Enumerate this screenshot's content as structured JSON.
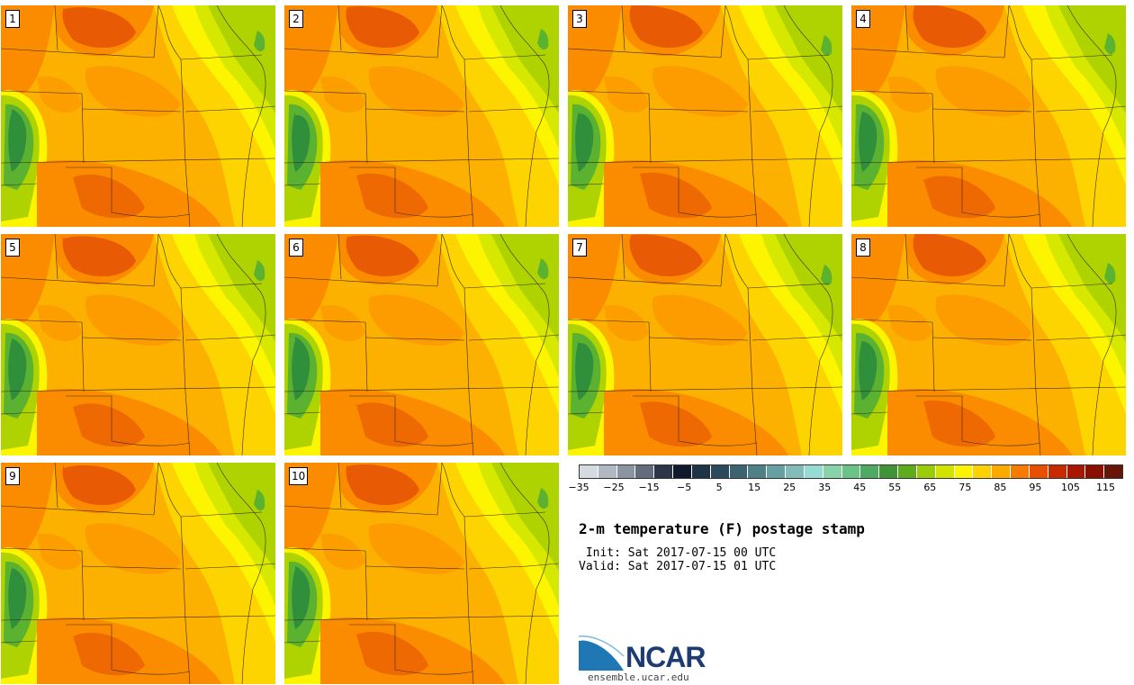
{
  "figure": {
    "title": "2-m temperature (F) postage stamp",
    "init_line": " Init: Sat 2017-07-15 00 UTC",
    "valid_line": "Valid: Sat 2017-07-15 01 UTC",
    "logo_text": "NCAR",
    "site": "ensemble.ucar.edu"
  },
  "panels": [
    {
      "label": "1"
    },
    {
      "label": "2"
    },
    {
      "label": "3"
    },
    {
      "label": "4"
    },
    {
      "label": "5"
    },
    {
      "label": "6"
    },
    {
      "label": "7"
    },
    {
      "label": "8"
    },
    {
      "label": "9"
    },
    {
      "label": "10"
    }
  ],
  "colorbar": {
    "colors": [
      "#d6dbe2",
      "#b2b8c2",
      "#8b94a2",
      "#636d7e",
      "#2d3648",
      "#111a2c",
      "#1e3346",
      "#2c4a5c",
      "#3c6470",
      "#4f8086",
      "#66a0a2",
      "#82bcb8",
      "#96dcd2",
      "#88d4a8",
      "#6ac488",
      "#4caa62",
      "#3e9436",
      "#5eac1e",
      "#9acd06",
      "#d2e300",
      "#fdf200",
      "#fdd200",
      "#fdaa00",
      "#f97a00",
      "#e94f00",
      "#c92900",
      "#a91700",
      "#891000",
      "#691408"
    ],
    "ticks": [
      "−35",
      "−25",
      "−15",
      "−5",
      "5",
      "15",
      "25",
      "35",
      "45",
      "55",
      "65",
      "75",
      "85",
      "95",
      "105",
      "115"
    ]
  },
  "colors": {
    "deep_orange": "#e95a04",
    "orange": "#fb8c00",
    "amber": "#fcb000",
    "yellow_orange": "#fdd400",
    "yellow": "#fdf400",
    "yellow_green": "#d6e800",
    "lime": "#aed300",
    "green": "#5ab230",
    "dark_green": "#2f8f3a",
    "boundary": "#3a2a1a"
  }
}
